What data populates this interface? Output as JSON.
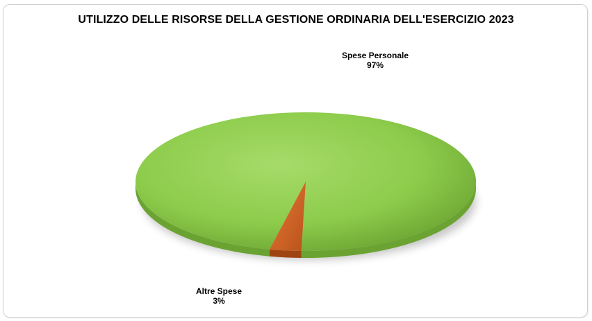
{
  "chart_data": {
    "type": "pie",
    "title": "UTILIZZO DELLE RISORSE DELLA GESTIONE ORDINARIA DELL'ESERCIZIO 2023",
    "categories": [
      "Spese Personale",
      "Altre Spese"
    ],
    "values": [
      97,
      3
    ],
    "value_labels": [
      "97%",
      "3%"
    ],
    "colors": [
      "#8dcc4b",
      "#d8692a"
    ],
    "style": "3d-perspective",
    "exploded": "Altre Spese"
  }
}
